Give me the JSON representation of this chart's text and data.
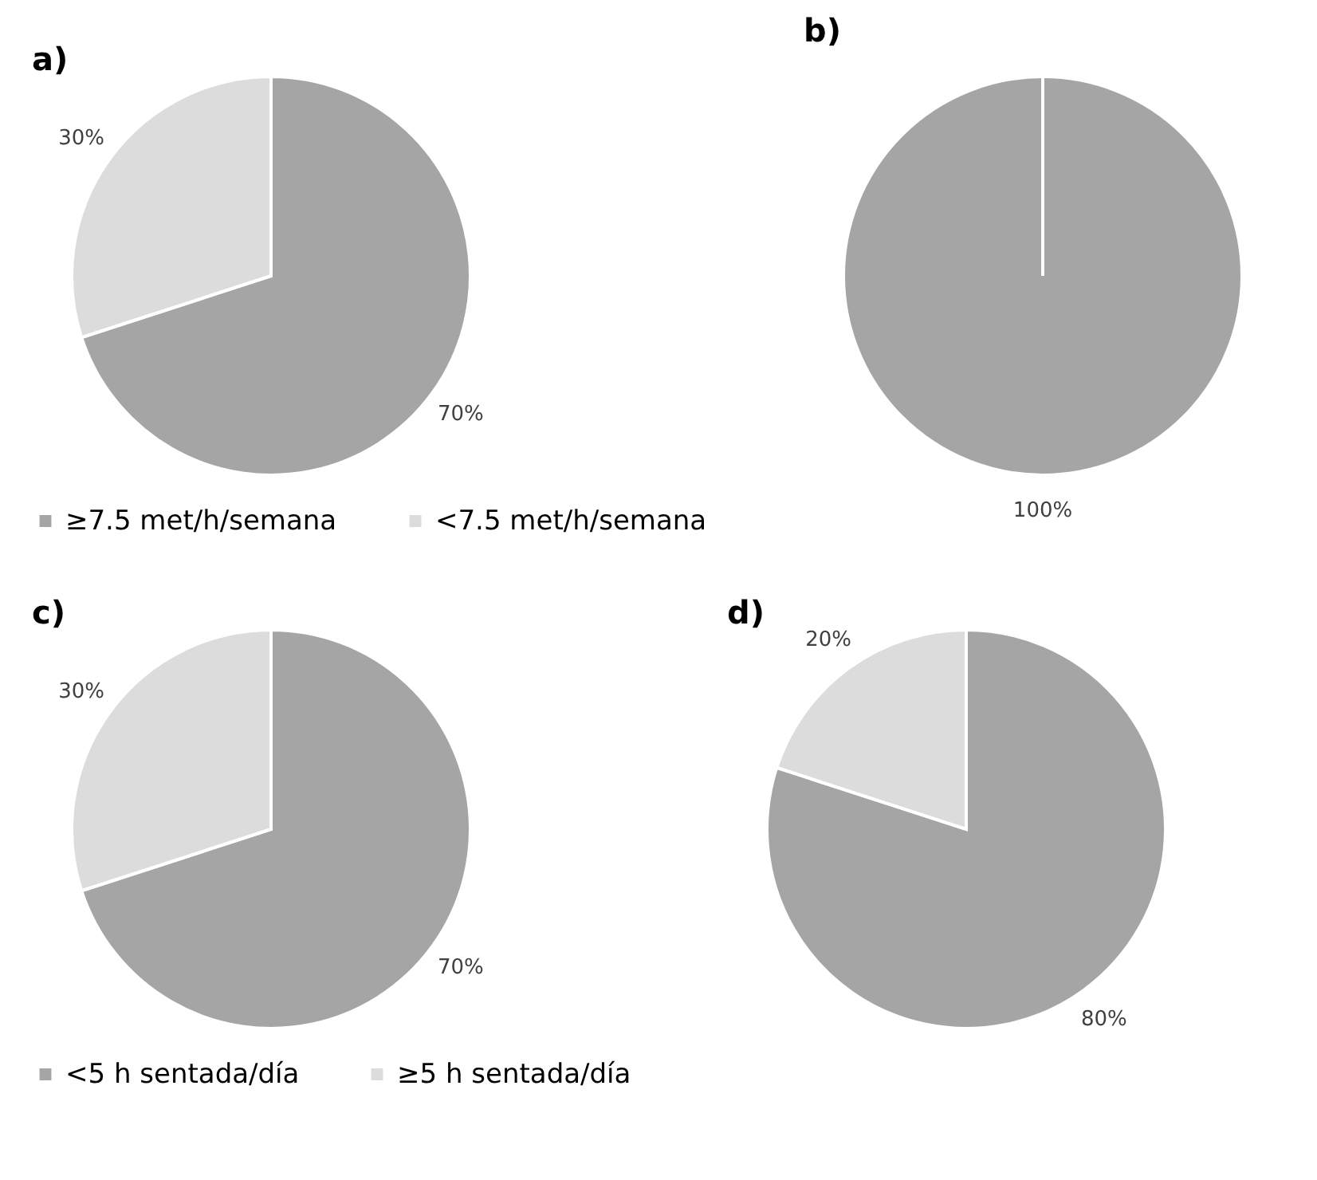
{
  "chart_data": [
    {
      "type": "pie",
      "title": "a)",
      "categories": [
        "≥7.5 met/h/semana",
        "<7.5 met/h/semana"
      ],
      "values": [
        70,
        30
      ],
      "colors": [
        "#a5a5a5",
        "#dcdcdc"
      ],
      "value_labels": [
        "70%",
        "30%"
      ],
      "legend": "bottom"
    },
    {
      "type": "pie",
      "title": "b)",
      "categories": [
        null,
        null
      ],
      "values": [
        100,
        0
      ],
      "colors": [
        "#a5a5a5",
        "#dcdcdc"
      ],
      "value_labels": [
        "100%",
        null
      ]
    },
    {
      "type": "pie",
      "title": "c)",
      "categories": [
        "<5 h sentada/día",
        "≥5 h sentada/día"
      ],
      "values": [
        70,
        30
      ],
      "colors": [
        "#a5a5a5",
        "#dcdcdc"
      ],
      "value_labels": [
        "70%",
        "30%"
      ],
      "legend": "bottom"
    },
    {
      "type": "pie",
      "title": "d)",
      "categories": [
        null,
        null
      ],
      "values": [
        80,
        20
      ],
      "colors": [
        "#a5a5a5",
        "#dcdcdc"
      ],
      "value_labels": [
        "80%",
        "20%"
      ]
    }
  ]
}
